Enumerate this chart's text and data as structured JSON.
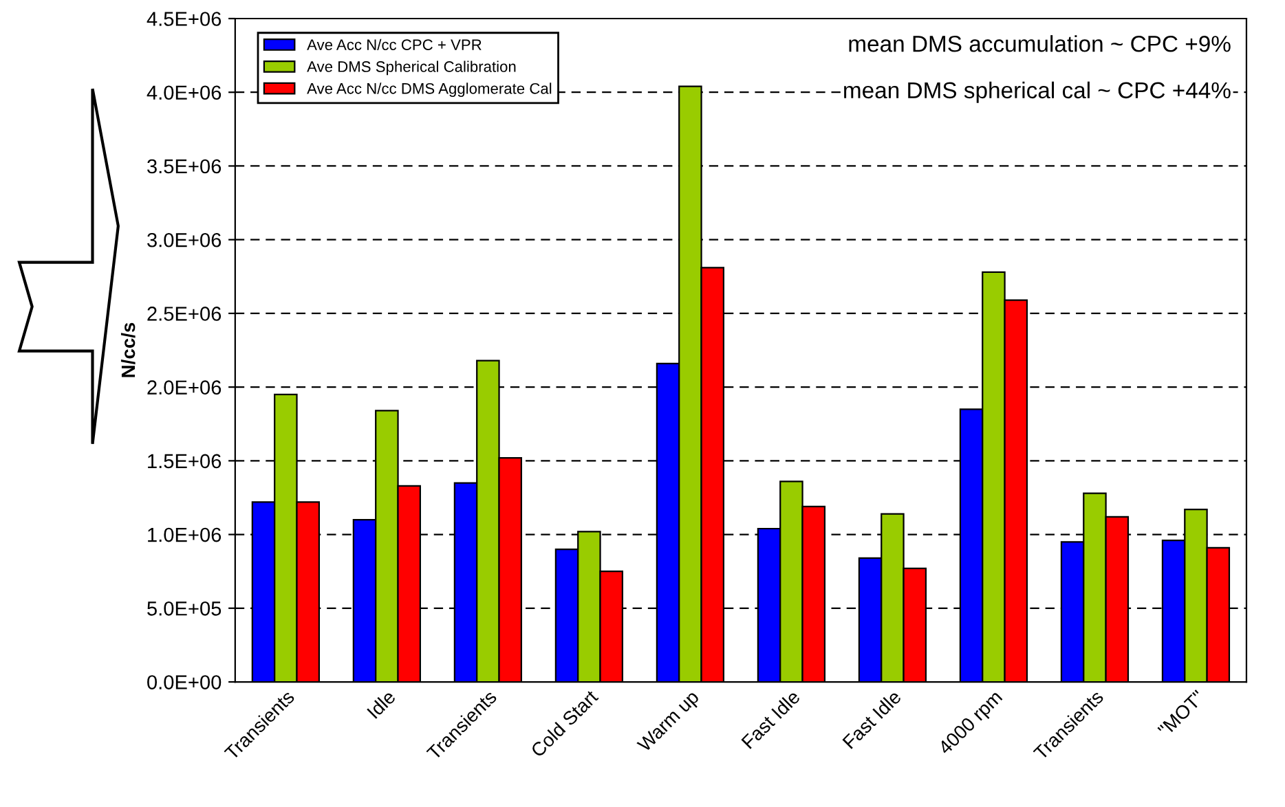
{
  "chart_data": {
    "type": "bar",
    "ylabel": "N/cc/s",
    "categories": [
      "Transients",
      "Idle",
      "Transients",
      "Cold Start",
      "Warm up",
      "Fast Idle",
      "Fast Idle",
      "4000 rpm",
      "Transients",
      "\"MOT\""
    ],
    "series": [
      {
        "name": "Ave Acc N/cc CPC + VPR",
        "color": "#0000ff",
        "values": [
          1220000,
          1100000,
          1350000,
          900000,
          2160000,
          1040000,
          840000,
          1850000,
          950000,
          960000
        ]
      },
      {
        "name": "Ave DMS Spherical Calibration",
        "color": "#99cc00",
        "values": [
          1950000,
          1840000,
          2180000,
          1020000,
          4040000,
          1360000,
          1140000,
          2780000,
          1280000,
          1170000
        ]
      },
      {
        "name": "Ave Acc N/cc DMS Agglomerate Cal",
        "color": "#ff0000",
        "values": [
          1220000,
          1330000,
          1520000,
          750000,
          2810000,
          1190000,
          770000,
          2590000,
          1120000,
          910000
        ]
      }
    ],
    "ylim": [
      0,
      4500000
    ],
    "yticks": [
      {
        "value": 0,
        "label": "0.0E+00"
      },
      {
        "value": 500000,
        "label": "5.0E+05"
      },
      {
        "value": 1000000,
        "label": "1.0E+06"
      },
      {
        "value": 1500000,
        "label": "1.5E+06"
      },
      {
        "value": 2000000,
        "label": "2.0E+06"
      },
      {
        "value": 2500000,
        "label": "2.5E+06"
      },
      {
        "value": 3000000,
        "label": "3.0E+06"
      },
      {
        "value": 3500000,
        "label": "3.5E+06"
      },
      {
        "value": 4000000,
        "label": "4.0E+06"
      },
      {
        "value": 4500000,
        "label": "4.5E+06"
      }
    ],
    "grid": "y",
    "legend": "top left",
    "annotations": [
      "mean DMS accumulation ~ CPC +9%",
      "mean DMS spherical cal ~ CPC +44%"
    ]
  }
}
